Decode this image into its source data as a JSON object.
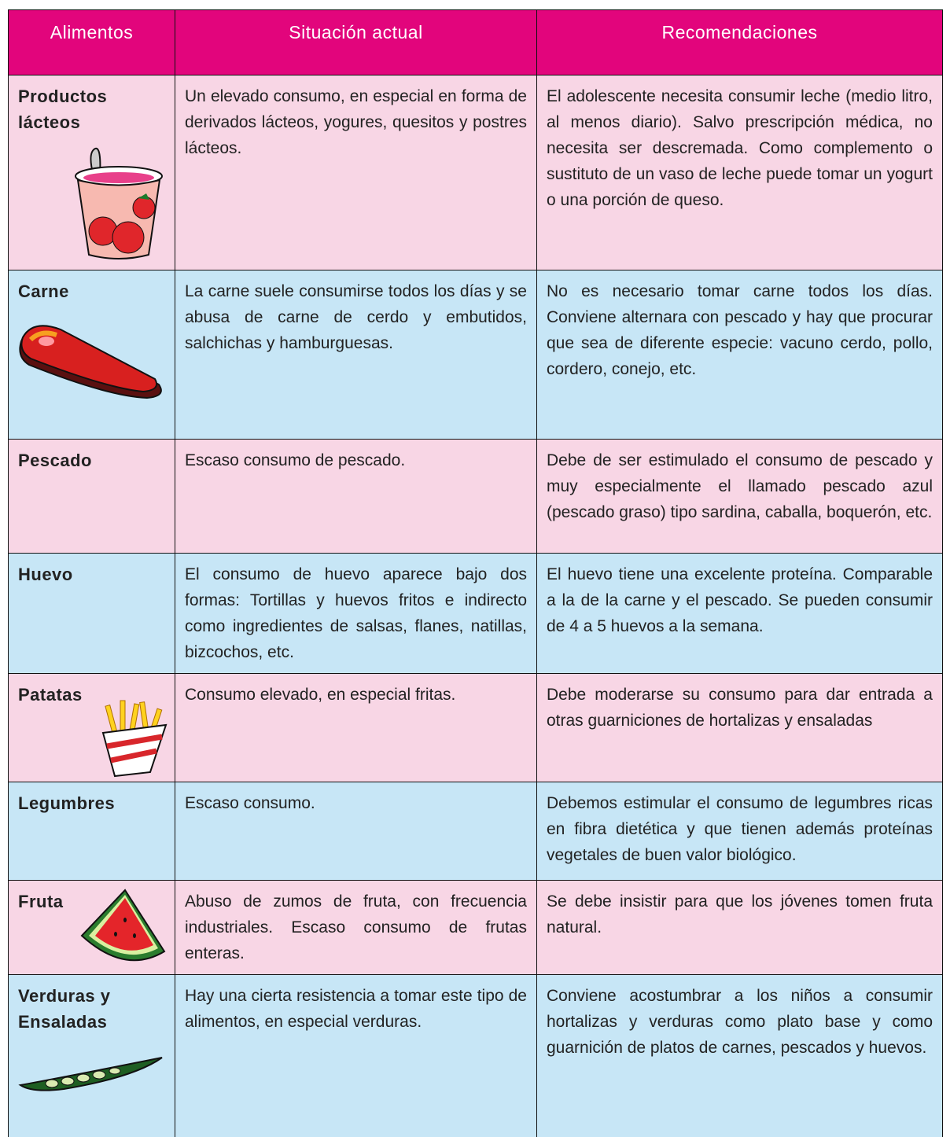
{
  "table": {
    "header": [
      "Alimentos",
      "Situación actual",
      "Recomendaciones"
    ],
    "rows": [
      [
        "Productos lácteos",
        "Un elevado consumo, en especial en forma de derivados lácteos, yogures, quesitos y postres lácteos.",
        "El adolescente necesita consumir leche (medio litro, al menos diario). Salvo prescripción médica, no necesita ser descremada. Como complemento o sustituto de un vaso de leche puede tomar un yogurt o una porción de queso."
      ],
      [
        "Carne",
        "La carne suele consumirse todos los días y se abusa de carne de cerdo y embutidos, salchichas y hamburguesas.",
        "No es necesario tomar carne todos los días. Conviene alternara con pescado y hay que procurar que sea de diferente especie: vacuno cerdo, pollo, cordero, conejo, etc."
      ],
      [
        "Pescado",
        "Escaso consumo de pescado.",
        "Debe de ser estimulado el consumo de pescado y muy especialmente el llamado pescado azul (pescado graso) tipo sardina, caballa, boquerón, etc."
      ],
      [
        "Huevo",
        "El consumo de huevo aparece bajo dos formas: Tortillas y huevos fritos e indirecto como ingredientes de salsas, flanes, natillas, bizcochos, etc.",
        "El huevo tiene una excelente proteína. Comparable a la de la carne y el pescado. Se pueden consumir de 4 a 5 huevos a la semana."
      ],
      [
        "Patatas",
        "Consumo elevado, en especial fritas.",
        "Debe moderarse su consumo para dar entrada a otras guarniciones de hortalizas y ensaladas"
      ],
      [
        "Legumbres",
        "Escaso consumo.",
        "Debemos estimular el consumo de legumbres ricas en fibra dietética y que tienen además proteínas vegetales de buen valor biológico."
      ],
      [
        "Fruta",
        "Abuso de zumos de fruta, con frecuencia industriales. Escaso consumo de frutas enteras.",
        "Se debe insistir para que los jóvenes tomen fruta natural."
      ],
      [
        "Verduras y Ensaladas",
        "Hay una cierta resistencia a tomar este tipo de alimentos, en especial verduras.",
        "Conviene acostumbrar a los niños a consumir hortalizas y verduras como plato base y como guarnición de platos de carnes, pescados y huevos."
      ]
    ]
  }
}
